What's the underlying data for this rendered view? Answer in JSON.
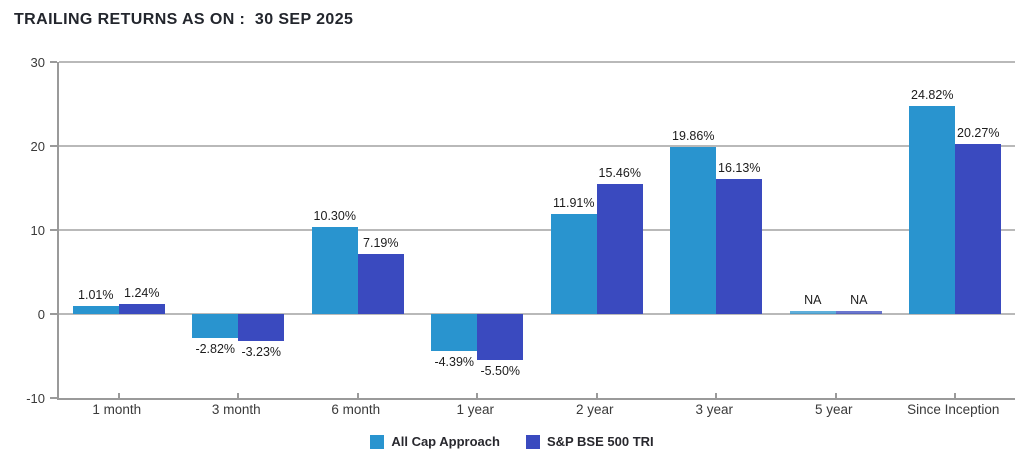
{
  "header": {
    "title": "TRAILING RETURNS AS ON :  30 SEP 2025"
  },
  "chart_data": {
    "type": "bar",
    "title": "TRAILING RETURNS AS ON : 30 SEP 2025",
    "categories": [
      "1 month",
      "3 month",
      "6 month",
      "1 year",
      "2 year",
      "3 year",
      "5 year",
      "Since Inception"
    ],
    "series": [
      {
        "name": "All Cap Approach",
        "color": "#2994CF",
        "values": [
          1.01,
          -2.82,
          10.3,
          -4.39,
          11.91,
          19.86,
          null,
          24.82
        ],
        "labels": [
          "1.01%",
          "-2.82%",
          "10.30%",
          "-4.39%",
          "11.91%",
          "19.86%",
          "NA",
          "24.82%"
        ]
      },
      {
        "name": "S&P BSE 500 TRI",
        "color": "#3A4ABF",
        "values": [
          1.24,
          -3.23,
          7.19,
          -5.5,
          15.46,
          16.13,
          null,
          20.27
        ],
        "labels": [
          "1.24%",
          "-3.23%",
          "7.19%",
          "-5.50%",
          "15.46%",
          "16.13%",
          "NA",
          "20.27%"
        ]
      }
    ],
    "ylim": [
      -10,
      30
    ],
    "yticks": [
      30,
      20,
      10,
      0,
      -10
    ],
    "grid": true,
    "legend_position": "bottom",
    "na_text": "NA"
  },
  "colors": {
    "gridline": "#b9b9b9",
    "axis": "#9a9a9a",
    "data_label": "#1c1c1c",
    "title_text": "#23262d"
  }
}
